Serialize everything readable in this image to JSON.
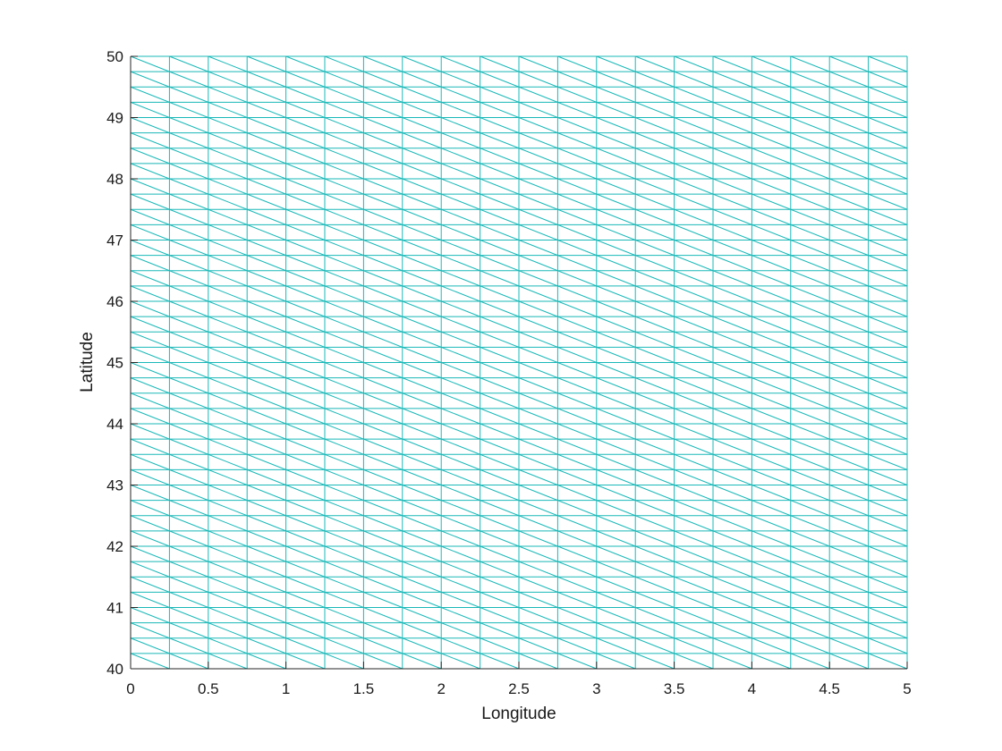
{
  "chart_data": {
    "type": "mesh",
    "description_of_marks": "triangulated mesh",
    "xlabel": "Longitude",
    "ylabel": "Latitude",
    "xlim": [
      0,
      5
    ],
    "ylim": [
      40,
      50
    ],
    "xticks": [
      "0",
      "0.5",
      "1",
      "1.5",
      "2",
      "2.5",
      "3",
      "3.5",
      "4",
      "4.5",
      "5"
    ],
    "yticks": [
      "40",
      "41",
      "42",
      "43",
      "44",
      "45",
      "46",
      "47",
      "48",
      "49",
      "50"
    ],
    "x_nodes": [
      0,
      0.25,
      0.5,
      0.75,
      1,
      1.25,
      1.5,
      1.75,
      2,
      2.25,
      2.5,
      2.75,
      3,
      3.25,
      3.5,
      3.75,
      4,
      4.25,
      4.5,
      4.75,
      5
    ],
    "y_node_spacing": 0.25,
    "diagonal_direction": "upper-left to lower-right",
    "colors": {
      "mesh": "#1ab8b8",
      "axes": "#262626",
      "background": "#ffffff"
    },
    "grid": false,
    "legend": "none"
  }
}
